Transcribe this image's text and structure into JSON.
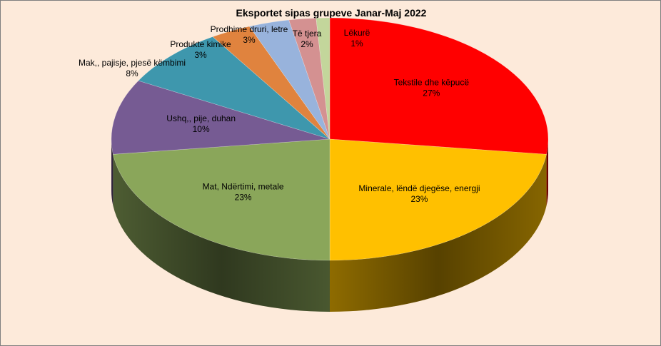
{
  "chart_data": {
    "type": "pie",
    "title": "Eksportet sipas grupeve Janar-Maj 2022",
    "slices": [
      {
        "label": "Tekstile dhe këpucë",
        "value": 27,
        "pct_label": "27%",
        "color": "#ff0000"
      },
      {
        "label": "Minerale, lëndë djegëse, energji",
        "value": 23,
        "pct_label": "23%",
        "color": "#ffc000"
      },
      {
        "label": "Mat, Ndërtimi, metale",
        "value": 23,
        "pct_label": "23%",
        "color": "#8aa65a"
      },
      {
        "label": "Ushq,, pije, duhan",
        "value": 10,
        "pct_label": "10%",
        "color": "#765b93"
      },
      {
        "label": "Mak,, pajisje, pjesë këmbimi",
        "value": 8,
        "pct_label": "8%",
        "color": "#3e97ad"
      },
      {
        "label": "Produkte kimike",
        "value": 3,
        "pct_label": "3%",
        "color": "#e0833e"
      },
      {
        "label": "Prodhime druri, letre",
        "value": 3,
        "pct_label": "3%",
        "color": "#98b3dc"
      },
      {
        "label": "Të tjera",
        "value": 2,
        "pct_label": "2%",
        "color": "#d49191"
      },
      {
        "label": "Lëkurë",
        "value": 1,
        "pct_label": "1%",
        "color": "#c3d69b"
      }
    ],
    "legend": "none",
    "style": "3d-pie"
  }
}
